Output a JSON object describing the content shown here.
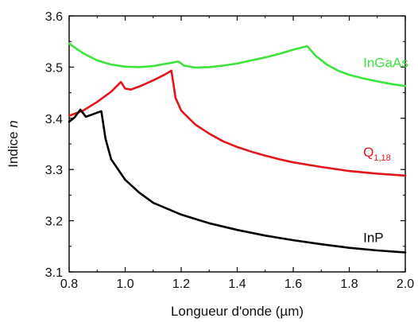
{
  "chart_data": {
    "type": "line",
    "xlabel": "Longueur d'onde (µm)",
    "ylabel": {
      "text": "Indice ",
      "var": "n"
    },
    "xlim": [
      0.8,
      2.0
    ],
    "ylim": [
      3.1,
      3.6
    ],
    "xticks": [
      "0.8",
      "1.0",
      "1.2",
      "1.4",
      "1.6",
      "1.8",
      "2.0"
    ],
    "yticks": [
      "3.1",
      "3.2",
      "3.3",
      "3.4",
      "3.5",
      "3.6"
    ],
    "grid": false,
    "series": [
      {
        "name": "InGaAs",
        "color": "#3de33d",
        "label_pos": [
          1.85,
          3.5
        ],
        "points": [
          [
            0.8,
            3.546
          ],
          [
            0.85,
            3.527
          ],
          [
            0.9,
            3.513
          ],
          [
            0.95,
            3.505
          ],
          [
            1.0,
            3.501
          ],
          [
            1.05,
            3.5
          ],
          [
            1.1,
            3.502
          ],
          [
            1.15,
            3.507
          ],
          [
            1.19,
            3.511
          ],
          [
            1.21,
            3.503
          ],
          [
            1.25,
            3.499
          ],
          [
            1.3,
            3.5
          ],
          [
            1.35,
            3.503
          ],
          [
            1.4,
            3.507
          ],
          [
            1.45,
            3.513
          ],
          [
            1.5,
            3.519
          ],
          [
            1.55,
            3.526
          ],
          [
            1.6,
            3.534
          ],
          [
            1.65,
            3.541
          ],
          [
            1.68,
            3.522
          ],
          [
            1.72,
            3.505
          ],
          [
            1.76,
            3.493
          ],
          [
            1.8,
            3.485
          ],
          [
            1.85,
            3.478
          ],
          [
            1.9,
            3.472
          ],
          [
            1.95,
            3.467
          ],
          [
            2.0,
            3.463
          ]
        ]
      },
      {
        "name": "Q",
        "subscript": "1,18",
        "color": "#e4141b",
        "label_pos": [
          1.85,
          3.325
        ],
        "points": [
          [
            0.8,
            3.405
          ],
          [
            0.85,
            3.415
          ],
          [
            0.9,
            3.432
          ],
          [
            0.95,
            3.452
          ],
          [
            0.985,
            3.471
          ],
          [
            1.0,
            3.458
          ],
          [
            1.02,
            3.456
          ],
          [
            1.05,
            3.462
          ],
          [
            1.1,
            3.474
          ],
          [
            1.14,
            3.485
          ],
          [
            1.165,
            3.493
          ],
          [
            1.18,
            3.44
          ],
          [
            1.2,
            3.415
          ],
          [
            1.25,
            3.388
          ],
          [
            1.3,
            3.37
          ],
          [
            1.35,
            3.355
          ],
          [
            1.4,
            3.344
          ],
          [
            1.45,
            3.335
          ],
          [
            1.5,
            3.327
          ],
          [
            1.55,
            3.32
          ],
          [
            1.6,
            3.314
          ],
          [
            1.7,
            3.305
          ],
          [
            1.8,
            3.297
          ],
          [
            1.9,
            3.292
          ],
          [
            2.0,
            3.288
          ]
        ]
      },
      {
        "name": "InP",
        "color": "#000000",
        "label_pos": [
          1.85,
          3.158
        ],
        "points": [
          [
            0.8,
            3.393
          ],
          [
            0.82,
            3.402
          ],
          [
            0.84,
            3.417
          ],
          [
            0.86,
            3.403
          ],
          [
            0.88,
            3.407
          ],
          [
            0.915,
            3.414
          ],
          [
            0.93,
            3.36
          ],
          [
            0.95,
            3.32
          ],
          [
            1.0,
            3.28
          ],
          [
            1.05,
            3.255
          ],
          [
            1.1,
            3.235
          ],
          [
            1.2,
            3.212
          ],
          [
            1.3,
            3.195
          ],
          [
            1.4,
            3.182
          ],
          [
            1.5,
            3.171
          ],
          [
            1.6,
            3.162
          ],
          [
            1.7,
            3.154
          ],
          [
            1.8,
            3.147
          ],
          [
            1.9,
            3.142
          ],
          [
            2.0,
            3.138
          ]
        ]
      }
    ]
  }
}
